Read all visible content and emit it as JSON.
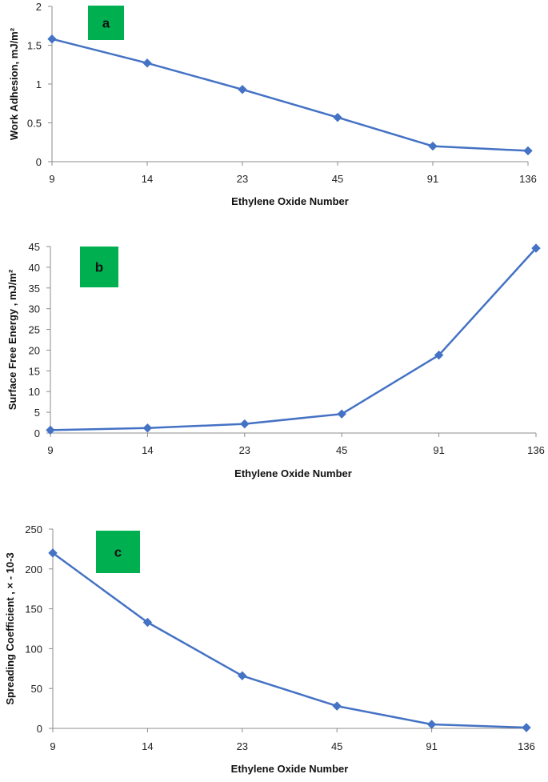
{
  "colors": {
    "series": "#4472C4",
    "axis": "#8c8c8c",
    "label_box": "#00b050",
    "background": "#ffffff"
  },
  "chart_data": [
    {
      "type": "line",
      "panel_label": "a",
      "xlabel": "Ethylene Oxide Number",
      "ylabel": "Work Adhesion, mJ/m²",
      "categories": [
        "9",
        "14",
        "23",
        "45",
        "91",
        "136"
      ],
      "values": [
        1.58,
        1.27,
        0.93,
        0.57,
        0.2,
        0.14
      ],
      "ylim": [
        0,
        2
      ],
      "yticks": [
        "0",
        "0.5",
        "1",
        "1.5",
        "2"
      ],
      "grid": false,
      "marker": "diamond"
    },
    {
      "type": "line",
      "panel_label": "b",
      "xlabel": "Ethylene Oxide Number",
      "ylabel": "Surface Free Energy , mJ/m²",
      "categories": [
        "9",
        "14",
        "23",
        "45",
        "91",
        "136"
      ],
      "values": [
        0.7,
        1.2,
        2.2,
        4.6,
        18.8,
        44.6
      ],
      "ylim": [
        0,
        45
      ],
      "yticks": [
        "0",
        "5",
        "10",
        "15",
        "20",
        "25",
        "30",
        "35",
        "40",
        "45"
      ],
      "grid": false,
      "marker": "diamond"
    },
    {
      "type": "line",
      "panel_label": "c",
      "xlabel": "Ethylene Oxide Number",
      "ylabel": "Spreading Coefficient , × - 10-3",
      "categories": [
        "9",
        "14",
        "23",
        "45",
        "91",
        "136"
      ],
      "values": [
        220,
        133,
        66,
        28,
        5,
        1
      ],
      "ylim": [
        0,
        250
      ],
      "yticks": [
        "0",
        "50",
        "100",
        "150",
        "200",
        "250"
      ],
      "grid": false,
      "marker": "diamond"
    }
  ]
}
